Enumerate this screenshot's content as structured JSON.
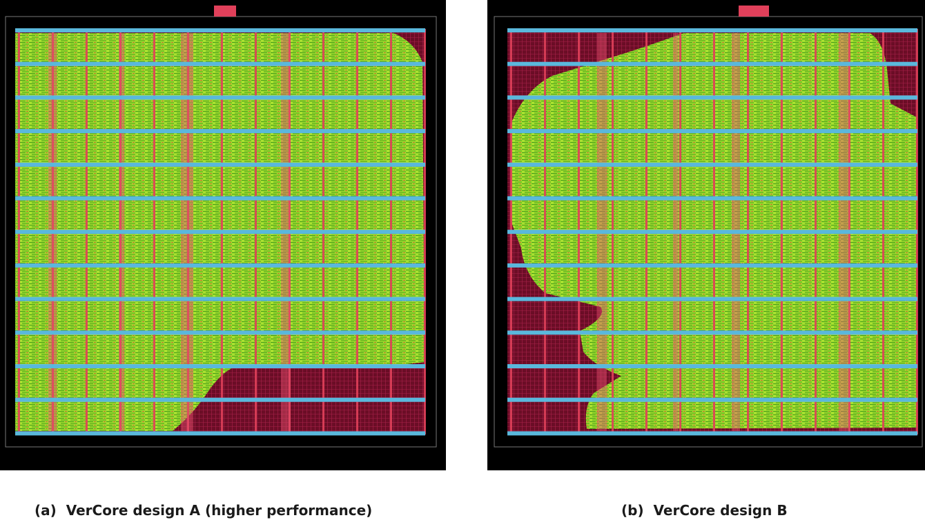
{
  "panels": [
    {
      "label": "(a)",
      "caption": "VerCore design A (higher performance)"
    },
    {
      "label": "(b)",
      "caption": "VerCore design B"
    }
  ]
}
